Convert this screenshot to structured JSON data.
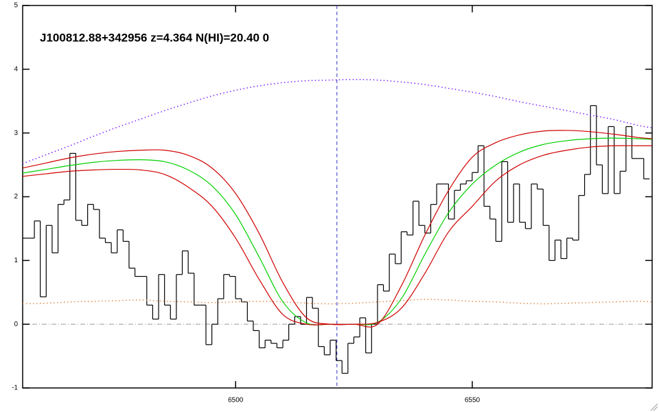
{
  "chart_data": {
    "type": "line",
    "title": "J100812.88+342956 z=4.364 N(HI)=20.40 0",
    "xlim": [
      6455,
      6588
    ],
    "ylim": [
      -1,
      5
    ],
    "xticks": [
      6500,
      6550
    ],
    "yticks": [
      -1,
      0,
      1,
      2,
      3,
      4,
      5
    ],
    "hline": 0,
    "vline": 6521.4,
    "x": [
      6455,
      6460,
      6465,
      6470,
      6475,
      6480,
      6485,
      6490,
      6495,
      6500,
      6505,
      6510,
      6515,
      6520,
      6525,
      6530,
      6535,
      6540,
      6545,
      6550,
      6555,
      6560,
      6565,
      6570,
      6575,
      6580,
      6585,
      6588
    ],
    "series": [
      {
        "color": "#000000",
        "style": "steps",
        "x": [
          6455.6,
          6456.85,
          6458.1,
          6459.35,
          6460.6,
          6461.85,
          6463.1,
          6464.35,
          6465.6,
          6466.85,
          6468.1,
          6469.35,
          6470.6,
          6471.85,
          6473.1,
          6474.35,
          6475.6,
          6476.85,
          6478.1,
          6479.35,
          6480.6,
          6481.85,
          6483.1,
          6484.35,
          6485.6,
          6486.85,
          6488.1,
          6489.35,
          6490.6,
          6491.85,
          6493.1,
          6494.35,
          6495.6,
          6496.85,
          6498.1,
          6499.35,
          6500.6,
          6501.85,
          6503.1,
          6504.35,
          6505.6,
          6506.85,
          6508.1,
          6509.35,
          6510.6,
          6511.85,
          6513.1,
          6514.35,
          6515.6,
          6516.85,
          6518.1,
          6519.35,
          6520.6,
          6521.85,
          6523.1,
          6524.35,
          6525.6,
          6526.85,
          6528.1,
          6529.35,
          6530.6,
          6531.85,
          6533.1,
          6534.35,
          6535.6,
          6536.85,
          6538.1,
          6539.35,
          6540.6,
          6541.85,
          6543.1,
          6544.35,
          6545.6,
          6546.85,
          6548.1,
          6549.35,
          6550.6,
          6551.85,
          6553.1,
          6554.35,
          6555.6,
          6556.85,
          6558.1,
          6559.35,
          6560.6,
          6561.85,
          6563.1,
          6564.35,
          6565.6,
          6566.85,
          6568.1,
          6569.35,
          6570.6,
          6571.85,
          6573.1,
          6574.35,
          6575.6,
          6576.85,
          6578.1,
          6579.35,
          6580.6,
          6581.85,
          6583.1,
          6584.35,
          6585.6,
          6586.85
        ],
        "values": [
          1.35,
          1.35,
          1.62,
          0.43,
          1.55,
          1.12,
          1.88,
          1.95,
          2.68,
          1.63,
          1.55,
          1.88,
          1.8,
          1.35,
          1.28,
          1.12,
          1.48,
          1.3,
          0.88,
          0.75,
          0.75,
          0.3,
          0.08,
          0.78,
          0.3,
          0.08,
          0.78,
          1.15,
          0.8,
          0.3,
          0.3,
          -0.32,
          0.0,
          0.4,
          0.78,
          0.75,
          0.4,
          0.35,
          0.05,
          -0.1,
          -0.37,
          -0.25,
          -0.3,
          -0.37,
          -0.25,
          0.0,
          0.12,
          0.0,
          0.42,
          0.25,
          -0.35,
          -0.48,
          -0.25,
          -0.57,
          -0.77,
          -0.3,
          -0.2,
          0.1,
          -0.45,
          0.0,
          0.62,
          0.52,
          1.1,
          0.95,
          1.45,
          1.4,
          1.93,
          1.55,
          1.43,
          1.88,
          2.2,
          2.2,
          1.65,
          2.1,
          2.2,
          2.25,
          2.38,
          2.8,
          1.85,
          1.65,
          1.3,
          2.55,
          1.6,
          2.2,
          1.6,
          1.5,
          2.2,
          2.12,
          1.55,
          1.0,
          1.32,
          1.03,
          1.35,
          1.32,
          2.02,
          2.35,
          3.43,
          2.5,
          2.05,
          3.1,
          2.05,
          2.4,
          3.1,
          2.6,
          2.6,
          2.28
        ]
      },
      {
        "color": "#7a1cff",
        "style": "dotted",
        "values": [
          2.52,
          2.66,
          2.8,
          2.95,
          3.09,
          3.22,
          3.35,
          3.47,
          3.58,
          3.67,
          3.74,
          3.79,
          3.82,
          3.83,
          3.84,
          3.83,
          3.8,
          3.76,
          3.7,
          3.64,
          3.57,
          3.49,
          3.42,
          3.35,
          3.28,
          3.21,
          3.12,
          3.08
        ]
      },
      {
        "color": "#e0884a",
        "style": "dotted",
        "values": [
          0.32,
          0.33,
          0.35,
          0.36,
          0.37,
          0.38,
          0.36,
          0.35,
          0.34,
          0.35,
          0.36,
          0.35,
          0.33,
          0.32,
          0.33,
          0.35,
          0.37,
          0.39,
          0.38,
          0.36,
          0.35,
          0.33,
          0.32,
          0.33,
          0.34,
          0.35,
          0.36,
          0.35
        ]
      },
      {
        "color": "#00d000",
        "style": "solid",
        "values": [
          2.37,
          2.43,
          2.49,
          2.54,
          2.57,
          2.58,
          2.55,
          2.42,
          2.17,
          1.72,
          1.05,
          0.35,
          0.02,
          0,
          0,
          0.03,
          0.4,
          1.1,
          1.75,
          2.2,
          2.5,
          2.7,
          2.82,
          2.88,
          2.91,
          2.92,
          2.91,
          2.9
        ]
      },
      {
        "color": "#d00000",
        "style": "solid",
        "values": [
          2.45,
          2.53,
          2.61,
          2.67,
          2.71,
          2.73,
          2.73,
          2.65,
          2.45,
          2.05,
          1.42,
          0.65,
          0.1,
          0,
          0,
          0,
          0.6,
          1.4,
          2.1,
          2.62,
          2.85,
          2.97,
          3.03,
          3.04,
          3.02,
          2.98,
          2.93,
          2.91
        ]
      },
      {
        "color": "#d00000",
        "style": "solid",
        "values": [
          2.32,
          2.36,
          2.4,
          2.42,
          2.43,
          2.42,
          2.35,
          2.15,
          1.85,
          1.35,
          0.7,
          0.15,
          0,
          0,
          0,
          0.03,
          0.25,
          0.8,
          1.45,
          1.85,
          2.25,
          2.5,
          2.65,
          2.73,
          2.78,
          2.8,
          2.8,
          2.8
        ]
      }
    ]
  }
}
